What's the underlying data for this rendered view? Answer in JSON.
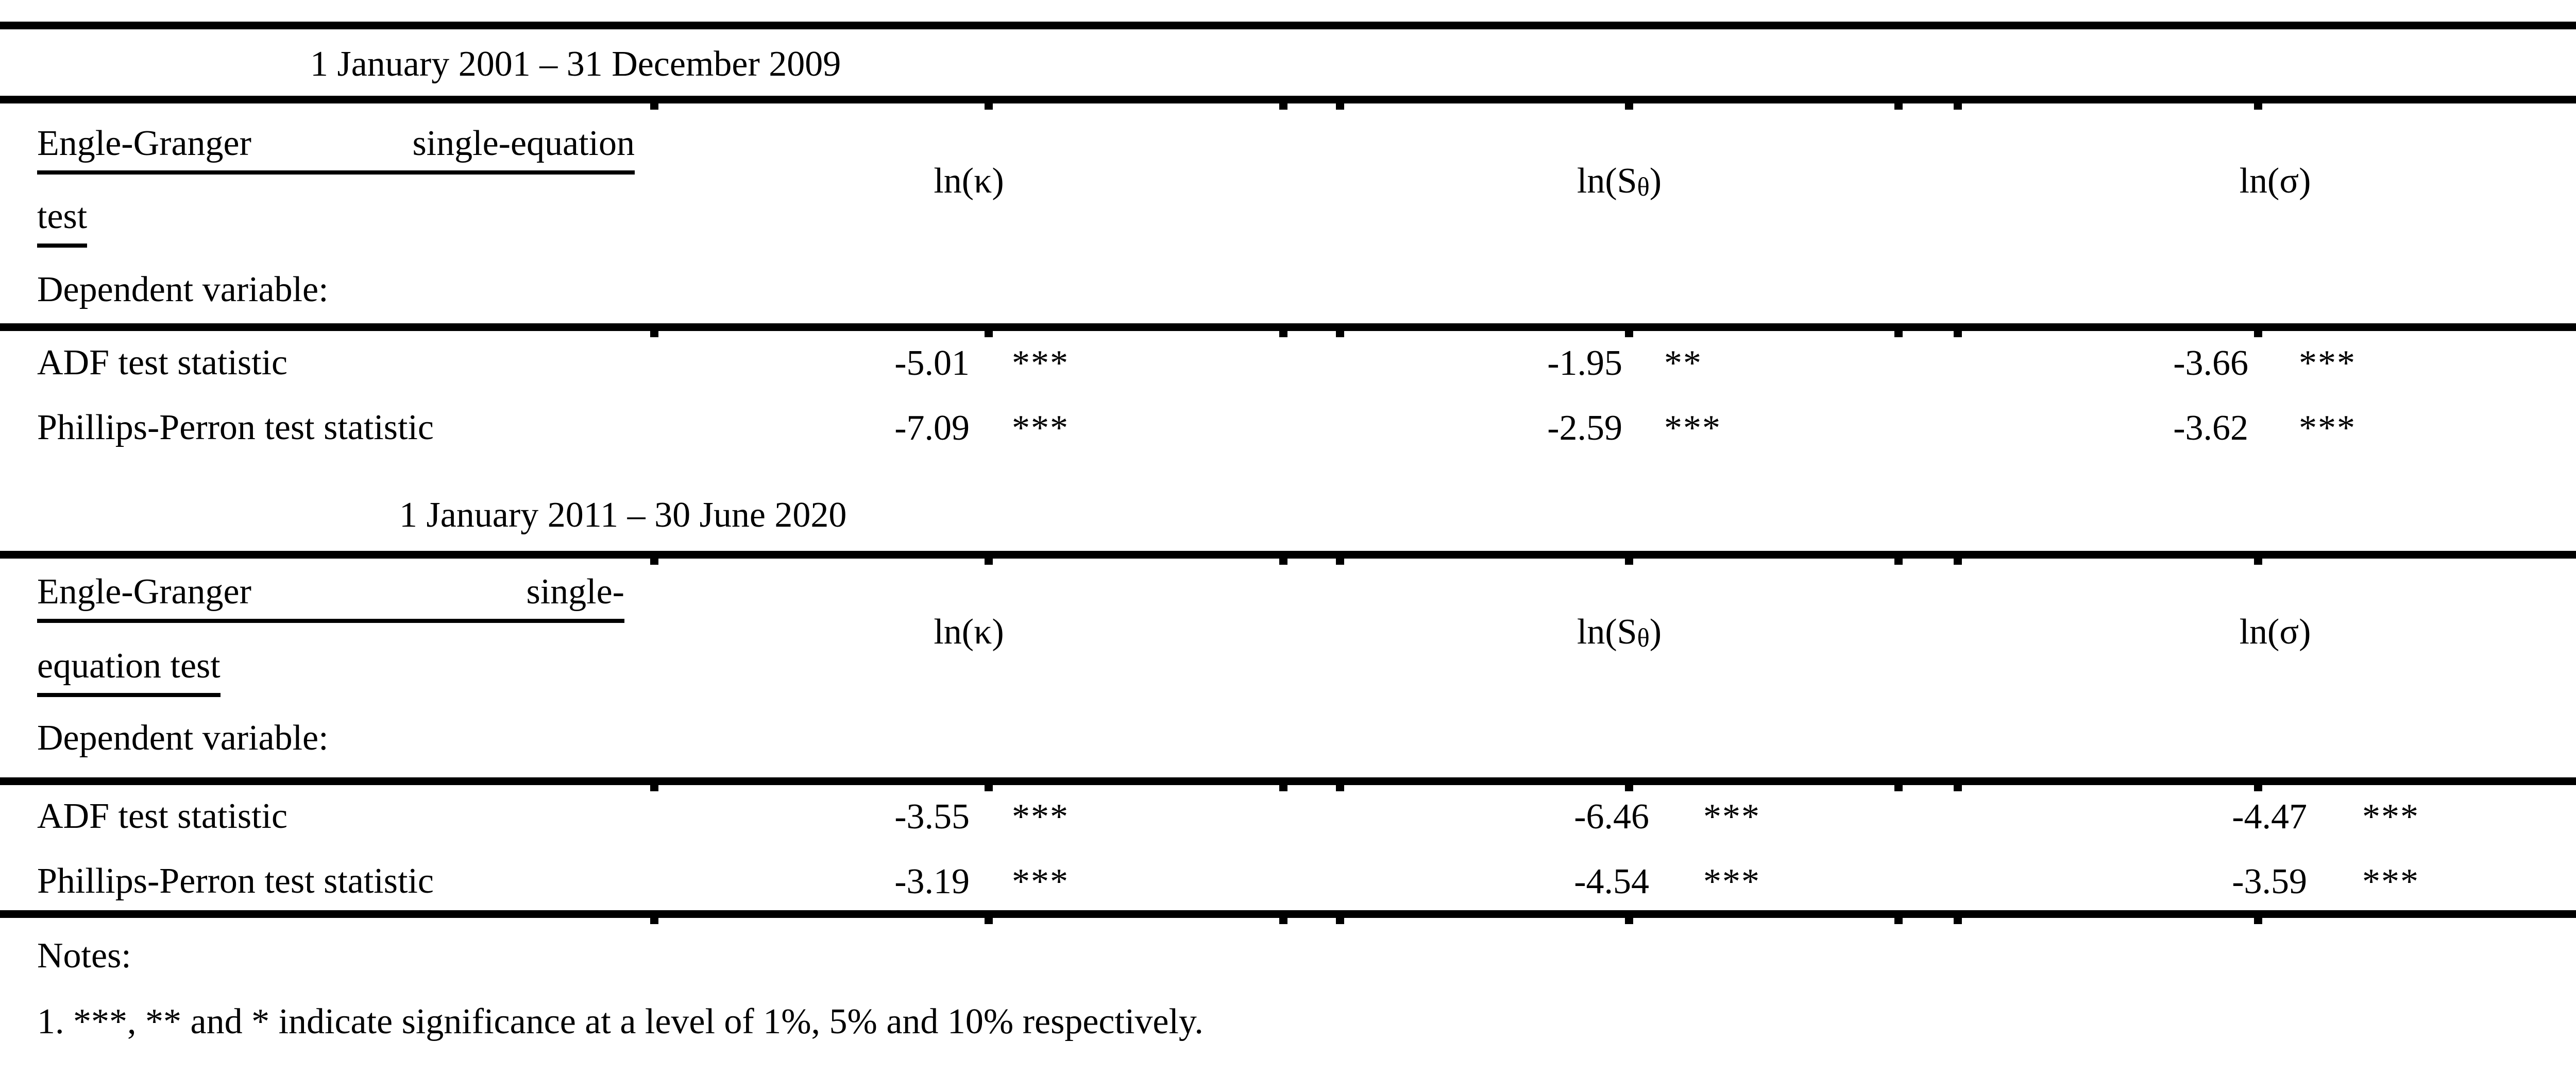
{
  "table": {
    "sections": [
      {
        "period": "1 January 2001 – 31 December 2009",
        "test_name": {
          "word1": "Engle-Granger",
          "word2": "single-equation",
          "line2": "test"
        },
        "dependent_label": "Dependent variable:",
        "columns": [
          {
            "text": "ln(κ)"
          },
          {
            "pre": "ln(S",
            "sub": "θ",
            "post": ")"
          },
          {
            "text": "ln(σ)"
          }
        ],
        "rows": [
          {
            "label": "ADF test statistic",
            "cells": [
              {
                "value": "-5.01",
                "stars": "***"
              },
              {
                "value": "-1.95",
                "stars": "**"
              },
              {
                "value": "-3.66",
                "stars": "***"
              }
            ]
          },
          {
            "label": "Phillips-Perron test statistic",
            "cells": [
              {
                "value": "-7.09",
                "stars": "***"
              },
              {
                "value": "-2.59",
                "stars": "***"
              },
              {
                "value": "-3.62",
                "stars": "***"
              }
            ]
          }
        ]
      },
      {
        "period": "1 January 2011 – 30 June 2020",
        "test_name": {
          "word1": "Engle-Granger",
          "word2": "single-",
          "line2": "equation test"
        },
        "dependent_label": "Dependent variable:",
        "columns": [
          {
            "text": "ln(κ)"
          },
          {
            "pre": "ln(S",
            "sub": "θ",
            "post": ")"
          },
          {
            "text": "ln(σ)"
          }
        ],
        "rows": [
          {
            "label": "ADF test statistic",
            "cells": [
              {
                "value": "-3.55",
                "stars": "***"
              },
              {
                "value": "-6.46",
                "stars": "***"
              },
              {
                "value": "-4.47",
                "stars": "***"
              }
            ]
          },
          {
            "label": "Phillips-Perron test statistic",
            "cells": [
              {
                "value": "-3.19",
                "stars": "***"
              },
              {
                "value": "-4.54",
                "stars": "***"
              },
              {
                "value": "-3.59",
                "stars": "***"
              }
            ]
          }
        ]
      }
    ],
    "notes": {
      "heading": "Notes:",
      "items": [
        "1. ***, ** and * indicate significance at a level of 1%, 5% and 10% respectively."
      ]
    }
  }
}
